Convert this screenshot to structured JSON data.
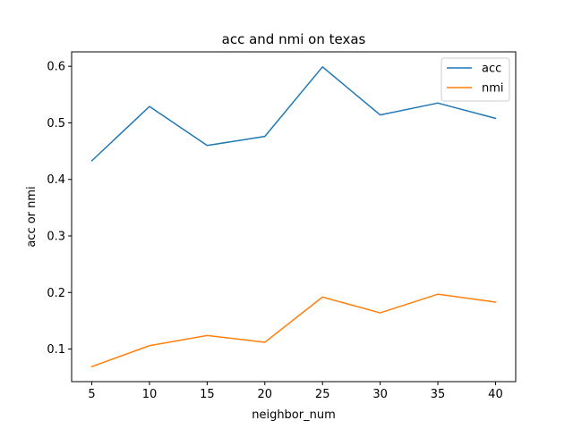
{
  "chart_data": {
    "type": "line",
    "title": "acc and nmi on texas",
    "xlabel": "neighbor_num",
    "ylabel": "acc or nmi",
    "x": [
      5,
      10,
      15,
      20,
      25,
      30,
      35,
      40
    ],
    "xticks": [
      5,
      10,
      15,
      20,
      25,
      30,
      35,
      40
    ],
    "xlim": [
      3.25,
      41.75
    ],
    "yticks": [
      0.1,
      0.2,
      0.3,
      0.4,
      0.5,
      0.6
    ],
    "ytick_labels": [
      "0.1",
      "0.2",
      "0.3",
      "0.4",
      "0.5",
      "0.6"
    ],
    "ylim": [
      0.0424,
      0.6256
    ],
    "grid": false,
    "legend_position": "top-right",
    "series": [
      {
        "name": "acc",
        "color": "#1f77b4",
        "values": [
          0.433,
          0.529,
          0.46,
          0.476,
          0.599,
          0.514,
          0.535,
          0.508
        ]
      },
      {
        "name": "nmi",
        "color": "#ff7f0e",
        "values": [
          0.069,
          0.106,
          0.124,
          0.112,
          0.192,
          0.164,
          0.197,
          0.183
        ]
      }
    ]
  }
}
